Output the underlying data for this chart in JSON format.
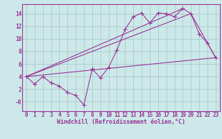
{
  "background_color": "#cce8e8",
  "grid_color": "#aacccc",
  "line_color": "#993399",
  "xlabel": "Windchill (Refroidissement éolien,°C)",
  "xlim": [
    -0.5,
    23.5
  ],
  "ylim": [
    -1.5,
    15.5
  ],
  "xtick_vals": [
    0,
    1,
    2,
    3,
    4,
    5,
    6,
    7,
    8,
    9,
    10,
    11,
    12,
    13,
    14,
    15,
    16,
    17,
    18,
    19,
    20,
    21,
    22,
    23
  ],
  "ytick_vals": [
    0,
    2,
    4,
    6,
    8,
    10,
    12,
    14
  ],
  "ytick_labels": [
    "-0",
    "2",
    "4",
    "6",
    "8",
    "10",
    "12",
    "14"
  ],
  "line1_x": [
    0,
    1,
    2,
    3,
    4,
    5,
    6,
    7,
    8,
    9,
    10,
    11,
    12,
    13,
    14,
    15,
    16,
    17,
    18,
    19,
    20,
    21,
    22,
    23
  ],
  "line1_y": [
    4.0,
    2.8,
    4.0,
    3.0,
    2.5,
    1.5,
    1.0,
    -0.5,
    5.2,
    3.8,
    5.5,
    8.2,
    11.5,
    13.5,
    14.1,
    12.5,
    14.1,
    14.0,
    13.5,
    14.8,
    14.0,
    10.8,
    9.3,
    7.0
  ],
  "line2_x": [
    0,
    23
  ],
  "line2_y": [
    4.0,
    7.0
  ],
  "line3_x": [
    0,
    19
  ],
  "line3_y": [
    4.0,
    14.8
  ],
  "line4_x": [
    0,
    20,
    23
  ],
  "line4_y": [
    4.0,
    14.0,
    7.0
  ],
  "font_size_label": 6,
  "font_size_tick": 5.5
}
